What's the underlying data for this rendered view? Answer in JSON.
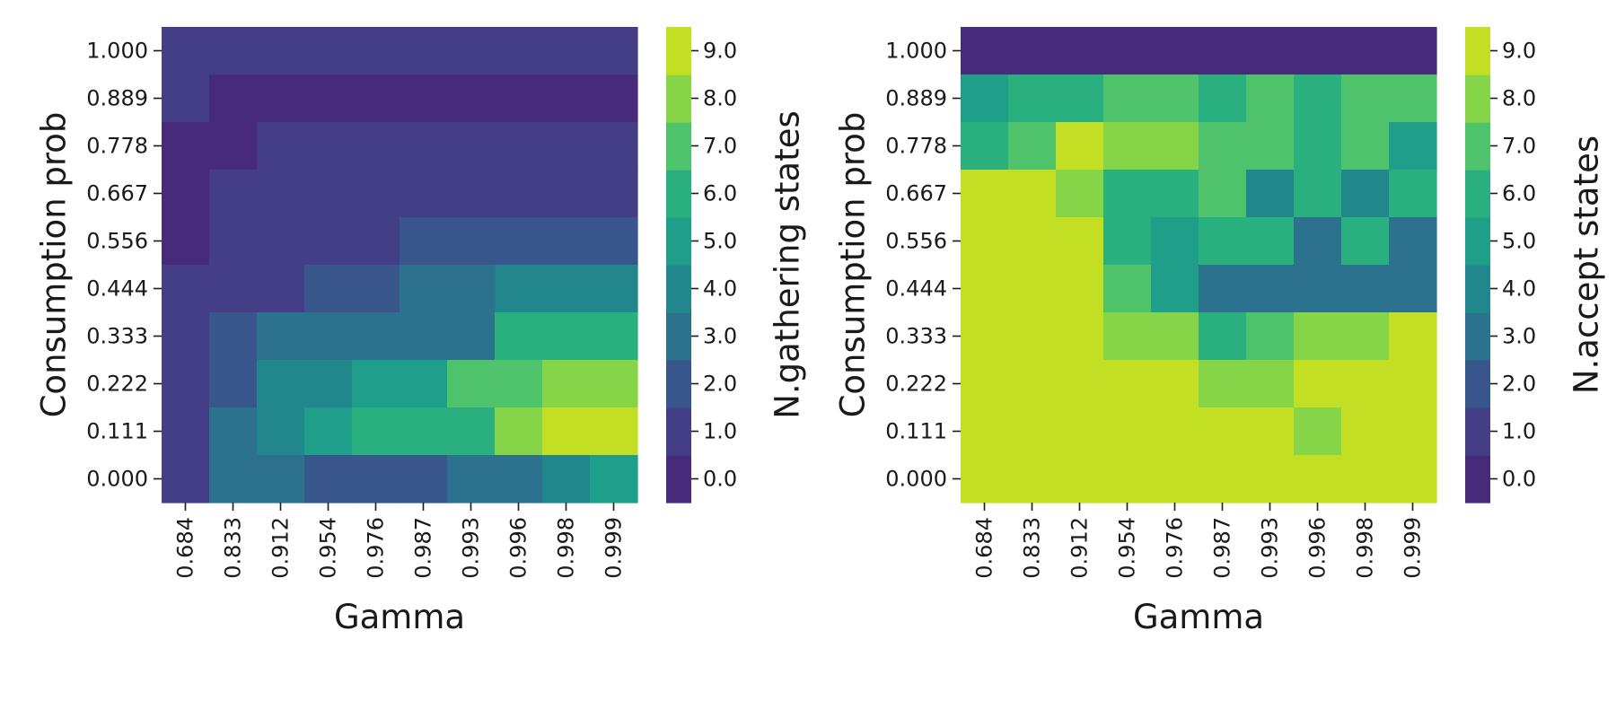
{
  "palette": [
    "#472a7a",
    "#433e85",
    "#39568c",
    "#2c728e",
    "#22878d",
    "#1f9e89",
    "#2ab07f",
    "#4ec36b",
    "#86d549",
    "#c2df23"
  ],
  "chart_data": [
    {
      "type": "heatmap",
      "xlabel": "Gamma",
      "ylabel": "Consumption prob",
      "colorbar_label": "N.gathering states",
      "x_categories": [
        "0.684",
        "0.833",
        "0.912",
        "0.954",
        "0.976",
        "0.987",
        "0.993",
        "0.996",
        "0.998",
        "0.999"
      ],
      "y_categories": [
        "1.000",
        "0.889",
        "0.778",
        "0.667",
        "0.556",
        "0.444",
        "0.333",
        "0.222",
        "0.111",
        "0.000"
      ],
      "colorbar_ticks": [
        "0.0",
        "1.0",
        "2.0",
        "3.0",
        "4.0",
        "5.0",
        "6.0",
        "7.0",
        "8.0",
        "9.0"
      ],
      "color_range": [
        -0.5,
        9.5
      ],
      "values": [
        [
          1,
          1,
          1,
          1,
          1,
          1,
          1,
          1,
          1,
          1
        ],
        [
          1,
          0,
          0,
          0,
          0,
          0,
          0,
          0,
          0,
          0
        ],
        [
          0,
          0,
          1,
          1,
          1,
          1,
          1,
          1,
          1,
          1
        ],
        [
          0,
          1,
          1,
          1,
          1,
          1,
          1,
          1,
          1,
          1
        ],
        [
          0,
          1,
          1,
          1,
          1,
          2,
          2,
          2,
          2,
          2
        ],
        [
          1,
          1,
          1,
          2,
          2,
          3,
          3,
          4,
          4,
          4
        ],
        [
          1,
          2,
          3,
          3,
          3,
          3,
          3,
          6,
          6,
          6
        ],
        [
          1,
          2,
          4,
          4,
          5,
          5,
          7,
          7,
          8,
          8
        ],
        [
          1,
          3,
          4,
          5,
          6,
          6,
          6,
          8,
          9,
          9
        ],
        [
          1,
          3,
          3,
          2,
          2,
          2,
          3,
          3,
          4,
          5
        ]
      ]
    },
    {
      "type": "heatmap",
      "xlabel": "Gamma",
      "ylabel": "Consumption prob",
      "colorbar_label": "N.accept states",
      "x_categories": [
        "0.684",
        "0.833",
        "0.912",
        "0.954",
        "0.976",
        "0.987",
        "0.993",
        "0.996",
        "0.998",
        "0.999"
      ],
      "y_categories": [
        "1.000",
        "0.889",
        "0.778",
        "0.667",
        "0.556",
        "0.444",
        "0.333",
        "0.222",
        "0.111",
        "0.000"
      ],
      "colorbar_ticks": [
        "0.0",
        "1.0",
        "2.0",
        "3.0",
        "4.0",
        "5.0",
        "6.0",
        "7.0",
        "8.0",
        "9.0"
      ],
      "color_range": [
        -0.5,
        9.5
      ],
      "values": [
        [
          0,
          0,
          0,
          0,
          0,
          0,
          0,
          0,
          0,
          0
        ],
        [
          5,
          6,
          6,
          7,
          7,
          6,
          7,
          6,
          7,
          7
        ],
        [
          6,
          7,
          9,
          8,
          8,
          7,
          7,
          6,
          7,
          5
        ],
        [
          9,
          9,
          8,
          6,
          6,
          7,
          4,
          6,
          4,
          6
        ],
        [
          9,
          9,
          9,
          6,
          5,
          6,
          6,
          3,
          6,
          3
        ],
        [
          9,
          9,
          9,
          7,
          5,
          3,
          3,
          3,
          3,
          3
        ],
        [
          9,
          9,
          9,
          8,
          8,
          6,
          7,
          8,
          8,
          9
        ],
        [
          9,
          9,
          9,
          9,
          9,
          8,
          8,
          9,
          9,
          9
        ],
        [
          9,
          9,
          9,
          9,
          9,
          9,
          9,
          8,
          9,
          9
        ],
        [
          9,
          9,
          9,
          9,
          9,
          9,
          9,
          9,
          9,
          9
        ]
      ]
    }
  ]
}
